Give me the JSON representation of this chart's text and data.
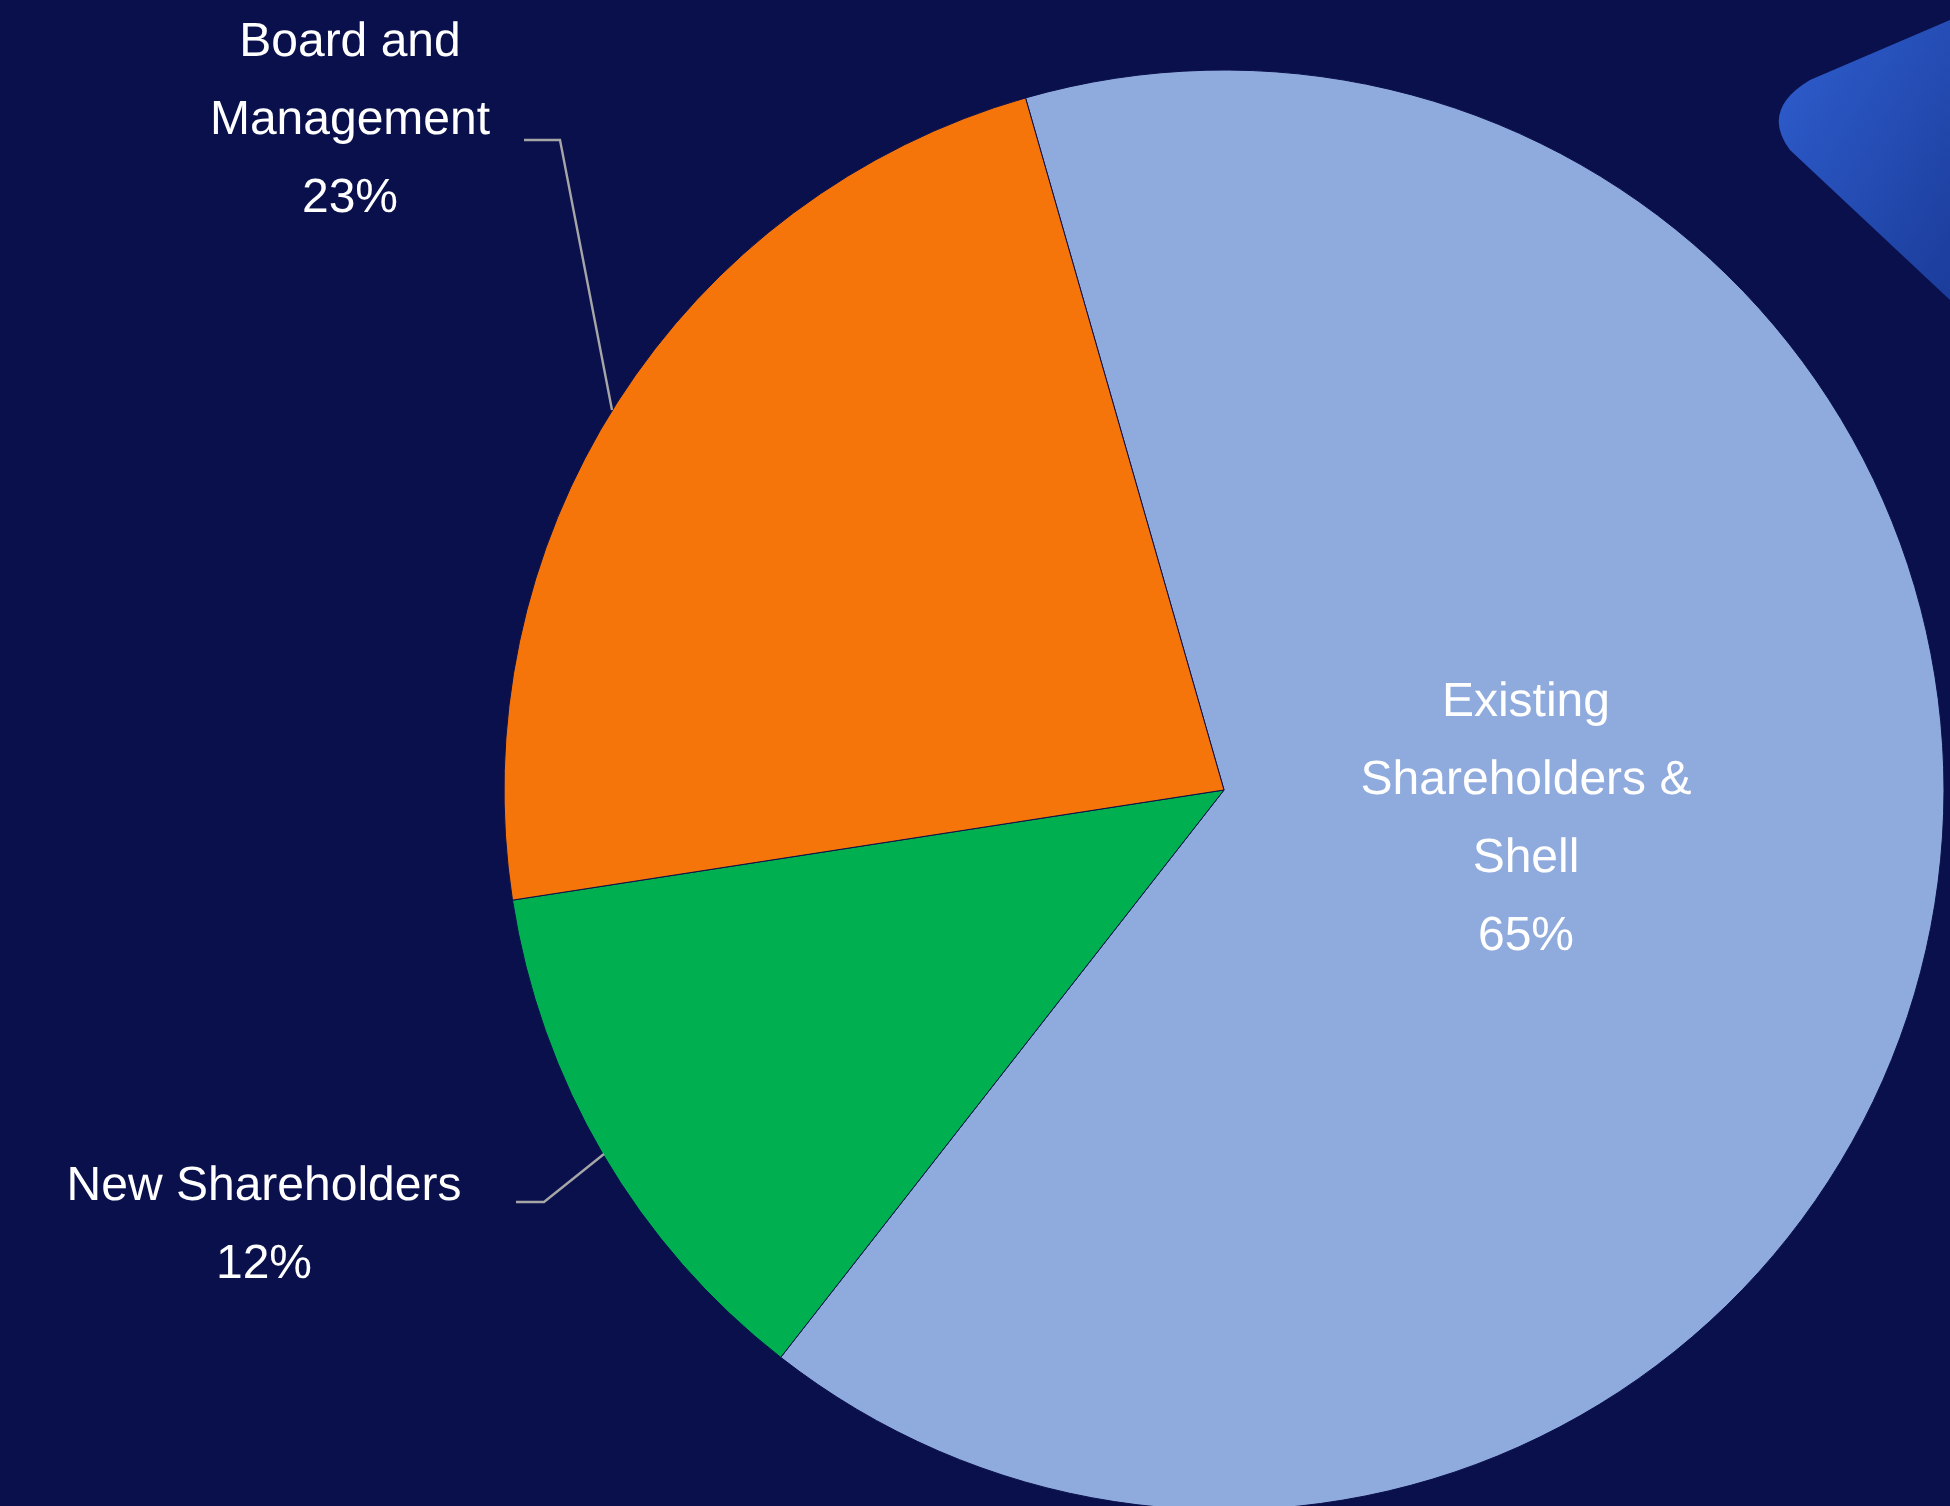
{
  "chart_data": {
    "type": "pie",
    "categories": [
      "Existing Shareholders & Shell",
      "New Shareholders",
      "Board and Management"
    ],
    "values": [
      65,
      12,
      23
    ],
    "colors": [
      "#8faadc",
      "#00b050",
      "#f5750a"
    ],
    "value_labels": [
      "65%",
      "12%",
      "23%"
    ],
    "legend": false
  }
}
